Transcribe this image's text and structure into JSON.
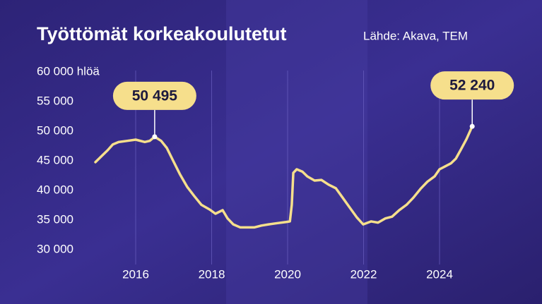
{
  "chart_data": {
    "type": "line",
    "title": "Työttömät korkeakoulutetut",
    "subtitle": "Lähde: Akava, TEM",
    "xlim": [
      2014.8,
      2025.4
    ],
    "xticks": [
      2016,
      2018,
      2020,
      2022,
      2024
    ],
    "ylim": [
      30000,
      60000
    ],
    "yticks": [
      {
        "value": 30000,
        "label": "30 000"
      },
      {
        "value": 35000,
        "label": "35 000"
      },
      {
        "value": 40000,
        "label": "40 000"
      },
      {
        "value": 45000,
        "label": "45 000"
      },
      {
        "value": 50000,
        "label": "50 000"
      },
      {
        "value": 55000,
        "label": "55 000"
      },
      {
        "value": 60000,
        "label": "60 000 hlöä"
      }
    ],
    "grid": "x",
    "series": [
      {
        "color": "#f6df8c",
        "x": [
          2014.94,
          2015.13,
          2015.26,
          2015.4,
          2015.55,
          2015.78,
          2016.0,
          2016.24,
          2016.37,
          2016.5,
          2016.67,
          2016.82,
          2016.99,
          2017.17,
          2017.36,
          2017.54,
          2017.73,
          2017.95,
          2018.1,
          2018.29,
          2018.42,
          2018.57,
          2018.75,
          2018.94,
          2019.13,
          2019.31,
          2019.5,
          2019.72,
          2019.96,
          2020.06,
          2020.11,
          2020.15,
          2020.24,
          2020.39,
          2020.52,
          2020.71,
          2020.89,
          2021.08,
          2021.27,
          2021.45,
          2021.64,
          2021.82,
          2021.99,
          2022.2,
          2022.38,
          2022.57,
          2022.75,
          2022.94,
          2023.13,
          2023.31,
          2023.5,
          2023.68,
          2023.87,
          2024.0,
          2024.15,
          2024.3,
          2024.43,
          2024.56,
          2024.71,
          2024.86
        ],
        "values": [
          46200,
          47400,
          48200,
          49200,
          49600,
          49800,
          50000,
          49600,
          49800,
          50495,
          49800,
          48600,
          46400,
          44100,
          42000,
          40500,
          39000,
          38200,
          37500,
          38100,
          36700,
          35700,
          35200,
          35200,
          35200,
          35500,
          35700,
          35900,
          36100,
          36200,
          39000,
          44400,
          45000,
          44600,
          43800,
          43100,
          43200,
          42400,
          41800,
          40200,
          38500,
          36900,
          35700,
          36200,
          36000,
          36700,
          37000,
          38100,
          39000,
          40200,
          41700,
          42900,
          43800,
          45000,
          45500,
          46000,
          46800,
          48300,
          50100,
          52240
        ],
        "value_labels": [
          null,
          null,
          null,
          null,
          null,
          null,
          null,
          null,
          null,
          "50 495",
          null,
          null,
          null,
          null,
          null,
          null,
          null,
          null,
          null,
          null,
          null,
          null,
          null,
          null,
          null,
          null,
          null,
          null,
          null,
          null,
          null,
          null,
          null,
          null,
          null,
          null,
          null,
          null,
          null,
          null,
          null,
          null,
          null,
          null,
          null,
          null,
          null,
          null,
          null,
          null,
          null,
          null,
          null,
          null,
          null,
          null,
          null,
          null,
          null,
          "52 240"
        ]
      }
    ]
  }
}
